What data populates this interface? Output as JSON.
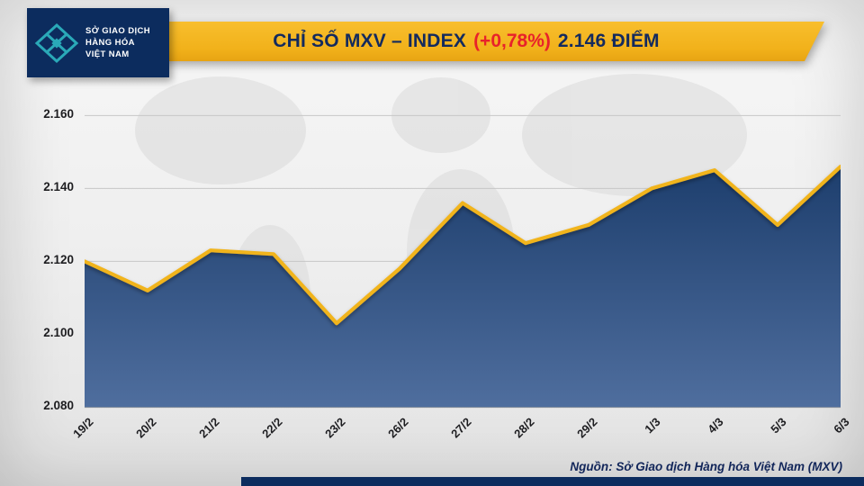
{
  "header": {
    "logo_box": {
      "bg_color": "#0c2c5e",
      "mark_color": "#2aa9b8",
      "lines": [
        "SỞ GIAO DỊCH",
        "HÀNG HÓA",
        "VIỆT NAM"
      ]
    },
    "banner": {
      "bg_color": "#f2b31d",
      "title_main": "CHỈ SỐ MXV – INDEX",
      "title_change": "(+0,78%)",
      "title_points": "2.146 ĐIỂM",
      "title_color": "#132a5e",
      "change_color": "#e8222a"
    }
  },
  "chart_data": {
    "type": "area",
    "title": "CHỈ SỐ MXV – INDEX (+0,78%) 2.146 ĐIỂM",
    "categories": [
      "19/2",
      "20/2",
      "21/2",
      "22/2",
      "23/2",
      "26/2",
      "27/2",
      "28/2",
      "29/2",
      "1/3",
      "4/3",
      "5/3",
      "6/3"
    ],
    "values": [
      2120,
      2112,
      2123,
      2122,
      2103,
      2118,
      2136,
      2125,
      2130,
      2140,
      2145,
      2130,
      2146
    ],
    "ytick_values": [
      2160,
      2140,
      2120,
      2100,
      2080
    ],
    "ytick_labels": [
      "2.160",
      "2.140",
      "2.120",
      "2.100",
      "2.080"
    ],
    "ylim": [
      2080,
      2167
    ],
    "grid": true,
    "legend": false,
    "xlabel": "",
    "ylabel": "",
    "line_color": "#f1b41f",
    "area_gradient_top": "#1d3e6d",
    "area_gradient_bottom": "#4f6e9e"
  },
  "footer": {
    "source": "Nguồn: Sở Giao dịch Hàng hóa Việt Nam (MXV)"
  }
}
